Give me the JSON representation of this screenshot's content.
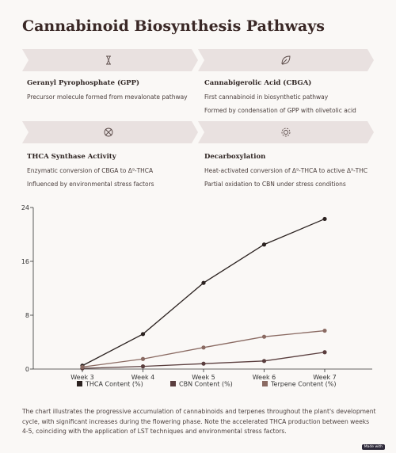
{
  "header": {
    "title": "Cannabinoid Biosynthesis Pathways"
  },
  "steps": [
    {
      "title": "Geranyl Pyrophosphate (GPP)",
      "lines": [
        "Precursor molecule formed from mevalonate pathway"
      ]
    },
    {
      "title": "Cannabigerolic Acid (CBGA)",
      "lines": [
        "First cannabinoid in biosynthetic pathway",
        "Formed by condensation of GPP with olivetolic acid"
      ]
    },
    {
      "title": "THCA Synthase Activity",
      "lines": [
        "Enzymatic conversion of CBGA to Δ⁹-THCA",
        "Influenced by environmental stress factors"
      ]
    },
    {
      "title": "Decarboxylation",
      "lines": [
        "Heat-activated conversion of Δ⁹-THCA to active Δ⁹-THC",
        "Partial oxidation to CBN under stress conditions"
      ]
    }
  ],
  "chart_data": {
    "type": "line",
    "categories": [
      "Week 3",
      "Week 4",
      "Week 5",
      "Week 6",
      "Week 7"
    ],
    "series": [
      {
        "name": "THCA Content (%)",
        "color": "#2b2220",
        "values": [
          0.5,
          5.2,
          12.8,
          18.5,
          22.3
        ]
      },
      {
        "name": "CBN Content (%)",
        "color": "#5a3e3e",
        "values": [
          0.1,
          0.4,
          0.8,
          1.2,
          2.5
        ]
      },
      {
        "name": "Terpene Content (%)",
        "color": "#8a6a62",
        "values": [
          0.3,
          1.5,
          3.2,
          4.8,
          5.7
        ]
      }
    ],
    "ylim": [
      0,
      24
    ],
    "yticks": [
      0,
      8,
      16,
      24
    ],
    "grid": false
  },
  "caption": "The chart illustrates the progressive accumulation of cannabinoids and terpenes throughout the plant's development cycle, with significant increases during the flowering phase. Note the accelerated THCA production between weeks 4-5, coinciding with the application of LST techniques and environmental stress factors.",
  "badge": "Made with"
}
